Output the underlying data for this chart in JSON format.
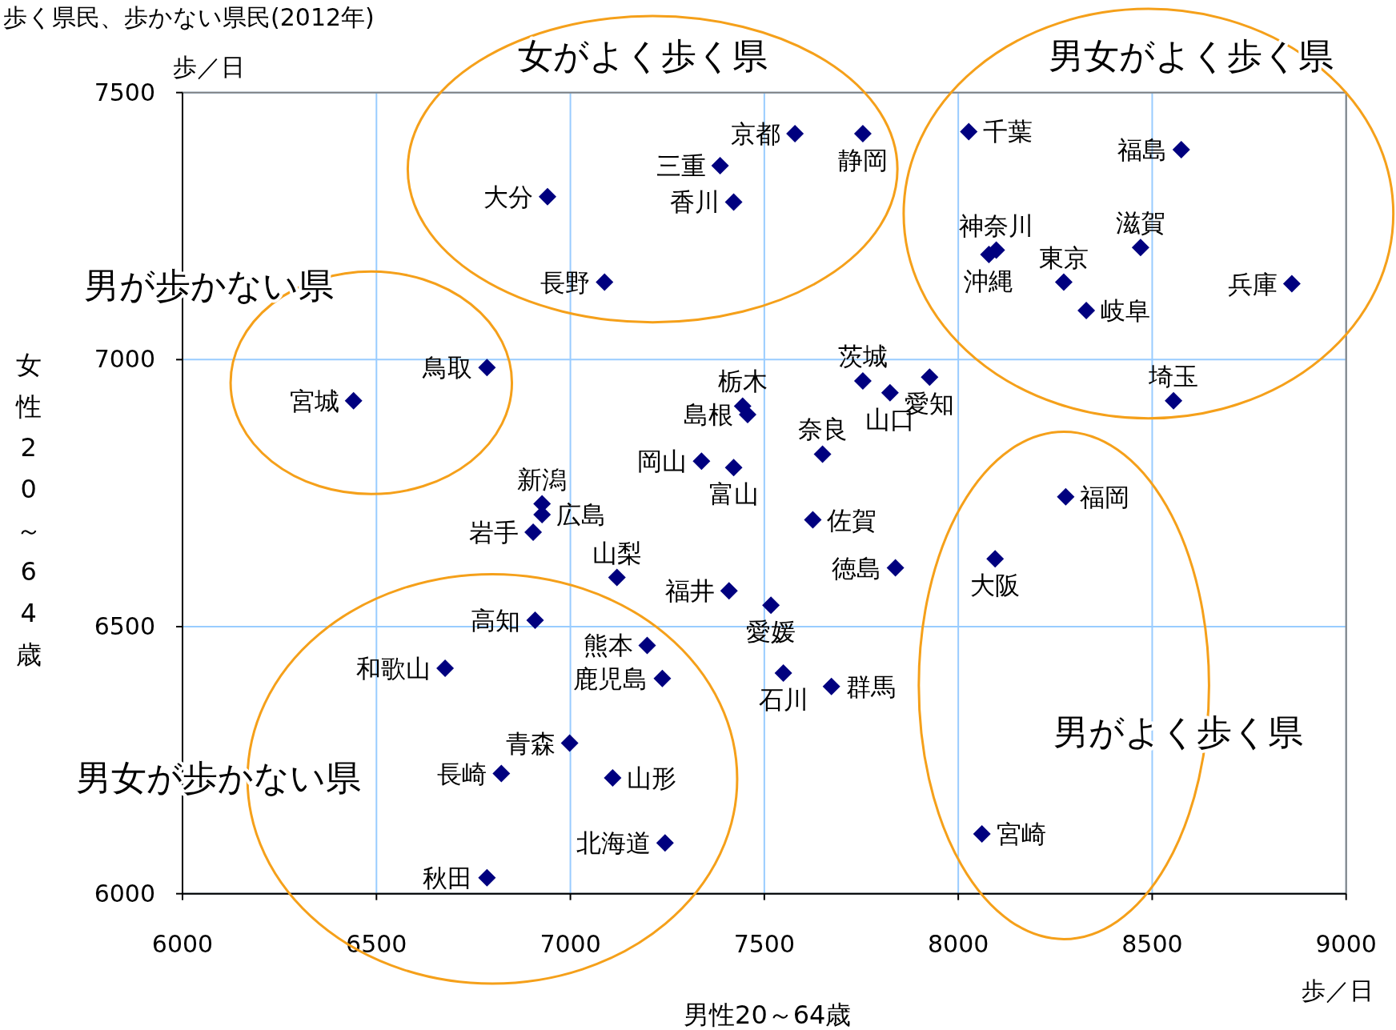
{
  "chart_data": {
    "type": "scatter",
    "title": "歩く県民、歩かない県民(2012年)",
    "xlabel": "男性20～64歳",
    "ylabel": "女性20～64歳",
    "x": [
      7579,
      7754,
      7386,
      7421,
      6941,
      7088,
      8027,
      8575,
      8470,
      8098,
      8272,
      8079,
      8330,
      8860,
      8555,
      6785,
      6441,
      7444,
      7457,
      7754,
      7824,
      7926,
      7650,
      7338,
      7421,
      6927,
      6927,
      6904,
      7625,
      7838,
      7120,
      7409,
      7517,
      7549,
      7673,
      8277,
      8095,
      8061,
      6909,
      7198,
      6677,
      7237,
      6998,
      6822,
      7109,
      7244,
      6785
    ],
    "values": [
      7423,
      7423,
      7363,
      7295,
      7305,
      7145,
      7427,
      7393,
      7210,
      7205,
      7145,
      7197,
      7092,
      7142,
      6923,
      6985,
      6923,
      6913,
      6897,
      6960,
      6938,
      6967,
      6823,
      6810,
      6798,
      6730,
      6710,
      6677,
      6700,
      6610,
      6592,
      6567,
      6540,
      6413,
      6388,
      6743,
      6627,
      6112,
      6512,
      6465,
      6422,
      6403,
      6282,
      6225,
      6217,
      6095,
      6030
    ],
    "color": "#00007f",
    "marker": "diamond",
    "grid": true,
    "xlim": [
      6000,
      9000
    ],
    "ylim": [
      6000,
      7500
    ],
    "xticks": [
      6000,
      6500,
      7000,
      7500,
      8000,
      8500,
      9000
    ],
    "yticks": [
      6000,
      6500,
      7000,
      7500
    ],
    "annotations": [
      {
        "text": "京都",
        "x": 7579,
        "y": 7423
      },
      {
        "text": "静岡",
        "x": 7754,
        "y": 7423
      },
      {
        "text": "三重",
        "x": 7386,
        "y": 7363
      },
      {
        "text": "香川",
        "x": 7421,
        "y": 7295
      },
      {
        "text": "大分",
        "x": 6941,
        "y": 7305
      },
      {
        "text": "長野",
        "x": 7088,
        "y": 7145
      },
      {
        "text": "千葉",
        "x": 8027,
        "y": 7427
      },
      {
        "text": "福島",
        "x": 8575,
        "y": 7393
      },
      {
        "text": "滋賀",
        "x": 8470,
        "y": 7210
      },
      {
        "text": "神奈川",
        "x": 8098,
        "y": 7205
      },
      {
        "text": "東京",
        "x": 8272,
        "y": 7145
      },
      {
        "text": "沖縄",
        "x": 8079,
        "y": 7197
      },
      {
        "text": "岐阜",
        "x": 8330,
        "y": 7092
      },
      {
        "text": "兵庫",
        "x": 8860,
        "y": 7142
      },
      {
        "text": "埼玉",
        "x": 8555,
        "y": 6923
      },
      {
        "text": "鳥取",
        "x": 6785,
        "y": 6985
      },
      {
        "text": "宮城",
        "x": 6441,
        "y": 6923
      },
      {
        "text": "栃木",
        "x": 7444,
        "y": 6913
      },
      {
        "text": "島根",
        "x": 7457,
        "y": 6897
      },
      {
        "text": "茨城",
        "x": 7754,
        "y": 6960
      },
      {
        "text": "山口",
        "x": 7824,
        "y": 6938
      },
      {
        "text": "愛知",
        "x": 7926,
        "y": 6967
      },
      {
        "text": "奈良",
        "x": 7650,
        "y": 6823
      },
      {
        "text": "岡山",
        "x": 7338,
        "y": 6810
      },
      {
        "text": "富山",
        "x": 7421,
        "y": 6798
      },
      {
        "text": "新潟",
        "x": 6927,
        "y": 6730
      },
      {
        "text": "広島",
        "x": 6927,
        "y": 6710
      },
      {
        "text": "岩手",
        "x": 6904,
        "y": 6677
      },
      {
        "text": "佐賀",
        "x": 7625,
        "y": 6700
      },
      {
        "text": "徳島",
        "x": 7838,
        "y": 6610
      },
      {
        "text": "山梨",
        "x": 7120,
        "y": 6592
      },
      {
        "text": "福井",
        "x": 7409,
        "y": 6567
      },
      {
        "text": "愛媛",
        "x": 7517,
        "y": 6540
      },
      {
        "text": "石川",
        "x": 7549,
        "y": 6413
      },
      {
        "text": "群馬",
        "x": 7673,
        "y": 6388
      },
      {
        "text": "福岡",
        "x": 8277,
        "y": 6743
      },
      {
        "text": "大阪",
        "x": 8095,
        "y": 6627
      },
      {
        "text": "宮崎",
        "x": 8061,
        "y": 6112
      },
      {
        "text": "高知",
        "x": 6909,
        "y": 6512
      },
      {
        "text": "熊本",
        "x": 7198,
        "y": 6465
      },
      {
        "text": "和歌山",
        "x": 6677,
        "y": 6422
      },
      {
        "text": "鹿児島",
        "x": 7237,
        "y": 6403
      },
      {
        "text": "青森",
        "x": 6998,
        "y": 6282
      },
      {
        "text": "長崎",
        "x": 6822,
        "y": 6225
      },
      {
        "text": "山形",
        "x": 7109,
        "y": 6217
      },
      {
        "text": "北海道",
        "x": 7244,
        "y": 6095
      },
      {
        "text": "秋田",
        "x": 6785,
        "y": 6030
      },
      "女がよく歩く県",
      "男女がよく歩く県",
      "男が歩かない県",
      "男がよく歩く県",
      "男女が歩かない県",
      "歩／日",
      "歩／日"
    ]
  }
}
